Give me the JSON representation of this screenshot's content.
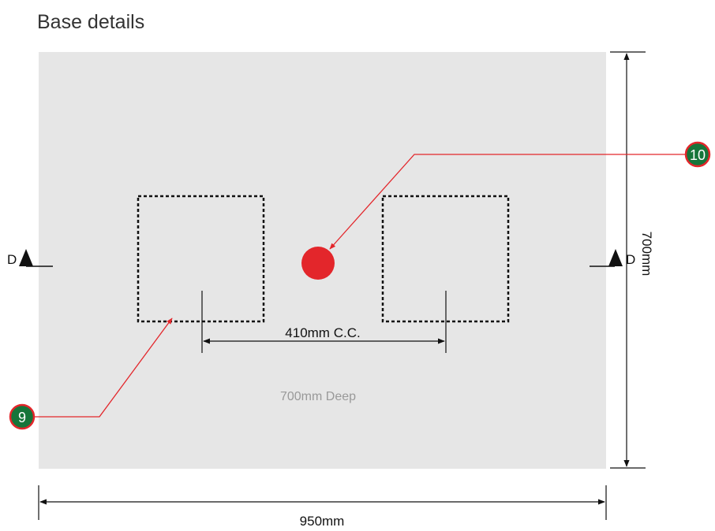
{
  "title": "Base details",
  "colors": {
    "slab_fill": "#e6e6e6",
    "dimension_line": "#111111",
    "leader_red": "#e3262b",
    "callout_fill": "#16753a",
    "dot_red": "#e3262b",
    "note_grey": "#999999"
  },
  "labels": {
    "width_dimension": "950mm",
    "height_dimension": "700mm",
    "center_spacing": "410mm C.C.",
    "depth_note": "700mm Deep",
    "section_marker_left": "D",
    "section_marker_right": "D"
  },
  "callouts": [
    {
      "id": "9",
      "label": "9"
    },
    {
      "id": "10",
      "label": "10"
    }
  ],
  "icons": {
    "section_arrow": "triangle-up-icon",
    "dimension_arrow": "arrowhead-icon"
  }
}
